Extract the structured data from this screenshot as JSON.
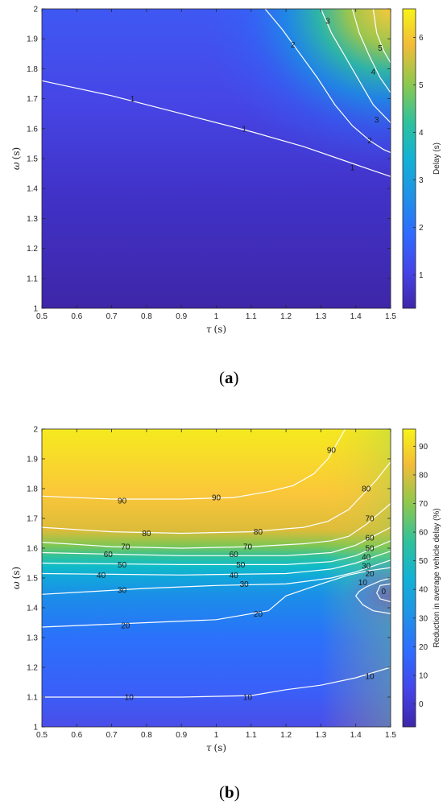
{
  "chart_data": [
    {
      "type": "heatmap",
      "panel_label": "a",
      "xlabel_symbol": "τ",
      "xlabel_unit": "(s)",
      "ylabel_symbol": "ω",
      "ylabel_unit": "(s)",
      "colorbar_label": "Delay (s)",
      "xlim": [
        0.5,
        1.5
      ],
      "ylim": [
        1,
        2
      ],
      "clim": [
        0.3,
        6.6
      ],
      "xticks": [
        "0.5",
        "0.6",
        "0.7",
        "0.8",
        "0.9",
        "1",
        "1.1",
        "1.2",
        "1.3",
        "1.4",
        "1.5"
      ],
      "yticks": [
        "1",
        "1.1",
        "1.2",
        "1.3",
        "1.4",
        "1.5",
        "1.6",
        "1.7",
        "1.8",
        "1.9",
        "2"
      ],
      "cbar_ticks": [
        1,
        2,
        3,
        4,
        5,
        6
      ],
      "grid": false,
      "contours": [
        {
          "level": "1",
          "points": [
            [
              0.5,
              1.76
            ],
            [
              0.7,
              1.71
            ],
            [
              0.9,
              1.65
            ],
            [
              1.1,
              1.59
            ],
            [
              1.25,
              1.54
            ],
            [
              1.35,
              1.5
            ],
            [
              1.45,
              1.46
            ],
            [
              1.5,
              1.44
            ]
          ],
          "labels": [
            [
              0.76,
              1.7
            ],
            [
              1.08,
              1.6
            ],
            [
              1.39,
              1.47
            ]
          ]
        },
        {
          "level": "2",
          "points": [
            [
              1.14,
              2.0
            ],
            [
              1.19,
              1.93
            ],
            [
              1.24,
              1.85
            ],
            [
              1.29,
              1.77
            ],
            [
              1.34,
              1.68
            ],
            [
              1.39,
              1.61
            ],
            [
              1.44,
              1.56
            ],
            [
              1.48,
              1.53
            ],
            [
              1.5,
              1.52
            ]
          ],
          "labels": [
            [
              1.22,
              1.88
            ],
            [
              1.44,
              1.56
            ]
          ]
        },
        {
          "level": "3",
          "points": [
            [
              1.3,
              2.0
            ],
            [
              1.33,
              1.92
            ],
            [
              1.37,
              1.84
            ],
            [
              1.41,
              1.76
            ],
            [
              1.45,
              1.68
            ],
            [
              1.5,
              1.62
            ]
          ],
          "labels": [
            [
              1.32,
              1.96
            ],
            [
              1.46,
              1.63
            ]
          ]
        },
        {
          "level": "4",
          "points": [
            [
              1.39,
              2.0
            ],
            [
              1.41,
              1.92
            ],
            [
              1.44,
              1.84
            ],
            [
              1.47,
              1.77
            ],
            [
              1.5,
              1.72
            ]
          ],
          "labels": [
            [
              1.45,
              1.79
            ]
          ]
        },
        {
          "level": "5",
          "points": [
            [
              1.45,
              2.0
            ],
            [
              1.46,
              1.92
            ],
            [
              1.48,
              1.86
            ],
            [
              1.5,
              1.82
            ]
          ],
          "labels": [
            [
              1.47,
              1.87
            ]
          ]
        }
      ]
    },
    {
      "type": "heatmap",
      "panel_label": "b",
      "xlabel_symbol": "τ",
      "xlabel_unit": "(s)",
      "ylabel_symbol": "ω",
      "ylabel_unit": "(s)",
      "colorbar_label": "Reduction in average vehicle delay (%)",
      "xlim": [
        0.5,
        1.5
      ],
      "ylim": [
        1,
        2
      ],
      "clim": [
        -8,
        96
      ],
      "xticks": [
        "0.5",
        "0.6",
        "0.7",
        "0.8",
        "0.9",
        "1",
        "1.1",
        "1.2",
        "1.3",
        "1.4",
        "1.5"
      ],
      "yticks": [
        "1",
        "1.1",
        "1.2",
        "1.3",
        "1.4",
        "1.5",
        "1.6",
        "1.7",
        "1.8",
        "1.9",
        "2"
      ],
      "cbar_ticks": [
        0,
        10,
        20,
        30,
        40,
        50,
        60,
        70,
        80,
        90
      ],
      "grid": false,
      "contours": [
        {
          "level": "90",
          "points": [
            [
              0.5,
              1.775
            ],
            [
              0.7,
              1.765
            ],
            [
              0.9,
              1.765
            ],
            [
              1.05,
              1.77
            ],
            [
              1.15,
              1.79
            ],
            [
              1.22,
              1.81
            ],
            [
              1.28,
              1.85
            ],
            [
              1.32,
              1.9
            ],
            [
              1.35,
              1.96
            ],
            [
              1.37,
              2.0
            ]
          ],
          "labels": [
            [
              0.73,
              1.76
            ],
            [
              1.0,
              1.77
            ],
            [
              1.33,
              1.93
            ]
          ]
        },
        {
          "level": "80",
          "points": [
            [
              0.5,
              1.67
            ],
            [
              0.7,
              1.655
            ],
            [
              0.9,
              1.65
            ],
            [
              1.1,
              1.655
            ],
            [
              1.25,
              1.67
            ],
            [
              1.32,
              1.69
            ],
            [
              1.38,
              1.73
            ],
            [
              1.42,
              1.78
            ],
            [
              1.46,
              1.83
            ],
            [
              1.5,
              1.89
            ]
          ],
          "labels": [
            [
              0.8,
              1.65
            ],
            [
              1.12,
              1.655
            ],
            [
              1.43,
              1.8
            ]
          ]
        },
        {
          "level": "70",
          "points": [
            [
              0.5,
              1.62
            ],
            [
              0.7,
              1.605
            ],
            [
              0.9,
              1.6
            ],
            [
              1.1,
              1.605
            ],
            [
              1.25,
              1.615
            ],
            [
              1.33,
              1.625
            ],
            [
              1.38,
              1.64
            ],
            [
              1.43,
              1.68
            ],
            [
              1.47,
              1.72
            ],
            [
              1.5,
              1.75
            ]
          ],
          "labels": [
            [
              0.74,
              1.605
            ],
            [
              1.09,
              1.605
            ],
            [
              1.44,
              1.7
            ]
          ]
        },
        {
          "level": "60",
          "points": [
            [
              0.5,
              1.585
            ],
            [
              0.9,
              1.575
            ],
            [
              1.2,
              1.575
            ],
            [
              1.33,
              1.585
            ],
            [
              1.4,
              1.61
            ],
            [
              1.45,
              1.64
            ],
            [
              1.5,
              1.67
            ]
          ],
          "labels": [
            [
              0.69,
              1.58
            ],
            [
              1.05,
              1.58
            ],
            [
              1.44,
              1.635
            ]
          ]
        },
        {
          "level": "50",
          "points": [
            [
              0.5,
              1.55
            ],
            [
              0.9,
              1.545
            ],
            [
              1.2,
              1.545
            ],
            [
              1.33,
              1.555
            ],
            [
              1.4,
              1.575
            ],
            [
              1.45,
              1.6
            ],
            [
              1.5,
              1.625
            ]
          ],
          "labels": [
            [
              0.73,
              1.545
            ],
            [
              1.07,
              1.545
            ],
            [
              1.44,
              1.6
            ]
          ]
        },
        {
          "level": "40",
          "points": [
            [
              0.5,
              1.515
            ],
            [
              0.9,
              1.51
            ],
            [
              1.2,
              1.515
            ],
            [
              1.33,
              1.53
            ],
            [
              1.4,
              1.55
            ],
            [
              1.45,
              1.57
            ],
            [
              1.5,
              1.59
            ]
          ],
          "labels": [
            [
              0.67,
              1.51
            ],
            [
              1.05,
              1.51
            ],
            [
              1.43,
              1.57
            ]
          ]
        },
        {
          "level": "30",
          "points": [
            [
              0.5,
              1.445
            ],
            [
              0.8,
              1.465
            ],
            [
              1.0,
              1.475
            ],
            [
              1.2,
              1.48
            ],
            [
              1.33,
              1.5
            ],
            [
              1.4,
              1.52
            ],
            [
              1.45,
              1.54
            ],
            [
              1.5,
              1.56
            ]
          ],
          "labels": [
            [
              0.73,
              1.46
            ],
            [
              1.08,
              1.48
            ],
            [
              1.43,
              1.54
            ]
          ]
        },
        {
          "level": "20",
          "points": [
            [
              0.5,
              1.335
            ],
            [
              0.8,
              1.35
            ],
            [
              1.0,
              1.36
            ],
            [
              1.15,
              1.39
            ],
            [
              1.2,
              1.44
            ],
            [
              1.3,
              1.48
            ],
            [
              1.38,
              1.51
            ],
            [
              1.44,
              1.525
            ],
            [
              1.5,
              1.535
            ]
          ],
          "labels": [
            [
              0.74,
              1.34
            ],
            [
              1.12,
              1.38
            ],
            [
              1.44,
              1.515
            ]
          ]
        },
        {
          "level": "10",
          "points": [
            [
              0.5,
              1.1
            ],
            [
              0.9,
              1.1
            ],
            [
              1.1,
              1.105
            ],
            [
              1.2,
              1.125
            ],
            [
              1.3,
              1.14
            ],
            [
              1.4,
              1.165
            ],
            [
              1.5,
              1.2
            ]
          ],
          "labels": [
            [
              0.75,
              1.1
            ],
            [
              1.09,
              1.1
            ],
            [
              1.44,
              1.17
            ]
          ]
        },
        {
          "level": "10",
          "points": [
            [
              1.5,
              1.5
            ],
            [
              1.47,
              1.49
            ],
            [
              1.43,
              1.47
            ],
            [
              1.41,
              1.455
            ],
            [
              1.4,
              1.44
            ],
            [
              1.42,
              1.41
            ],
            [
              1.45,
              1.39
            ],
            [
              1.5,
              1.38
            ]
          ],
          "labels": [
            [
              1.42,
              1.485
            ]
          ]
        },
        {
          "level": "0",
          "points": [
            [
              1.5,
              1.48
            ],
            [
              1.47,
              1.475
            ],
            [
              1.46,
              1.45
            ],
            [
              1.47,
              1.43
            ],
            [
              1.5,
              1.42
            ]
          ],
          "labels": [
            [
              1.48,
              1.455
            ]
          ]
        }
      ]
    }
  ]
}
